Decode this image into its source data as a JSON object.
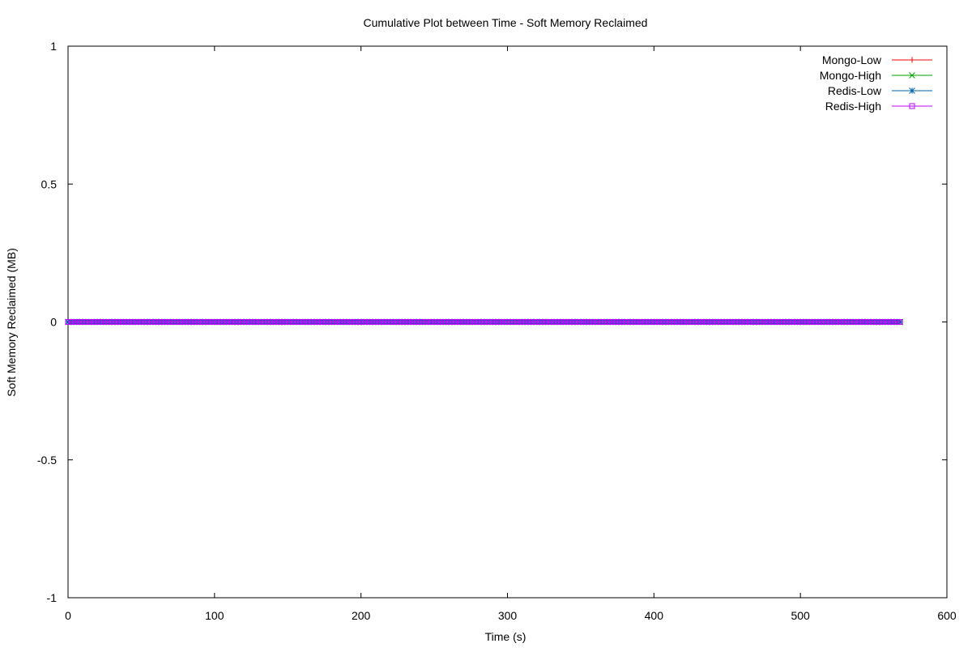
{
  "chart_data": {
    "type": "line",
    "title": "Cumulative Plot between Time - Soft Memory Reclaimed",
    "xlabel": "Time (s)",
    "ylabel": "Soft Memory Reclaimed (MB)",
    "xlim": [
      0,
      600
    ],
    "ylim": [
      -1,
      1
    ],
    "xticks": [
      0,
      100,
      200,
      300,
      400,
      500,
      600
    ],
    "yticks": [
      -1,
      -0.5,
      0,
      0.5,
      1
    ],
    "xtick_labels": [
      "0",
      "100",
      "200",
      "300",
      "400",
      "500",
      "600"
    ],
    "ytick_labels": [
      "-1",
      "-0.5",
      "0",
      "0.5",
      "1"
    ],
    "grid": false,
    "legend_position": "top-right",
    "x_range": [
      0,
      568
    ],
    "x_step": 2,
    "series": [
      {
        "name": "Mongo-Low",
        "color": "#ff0000",
        "marker": "plus",
        "value": 0
      },
      {
        "name": "Mongo-High",
        "color": "#00a000",
        "marker": "cross",
        "value": 0
      },
      {
        "name": "Redis-Low",
        "color": "#0060ad",
        "marker": "asterisk",
        "value": 0
      },
      {
        "name": "Redis-High",
        "color": "#c000ff",
        "marker": "square",
        "value": 0
      }
    ]
  }
}
